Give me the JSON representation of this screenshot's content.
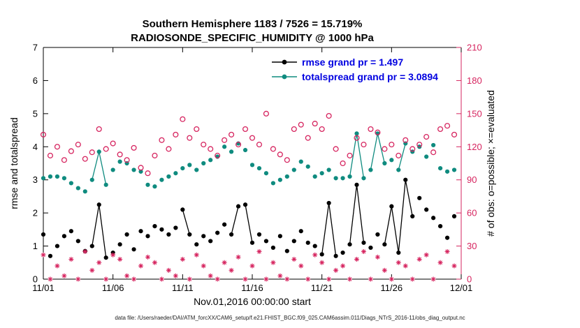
{
  "colors": {
    "rmse": "#000000",
    "totalspread": "#0f8b7f",
    "obs": "#d6245f",
    "legend_text": "#0000e0",
    "axis": "#000000"
  },
  "footer": {
    "datafile": "data file: /Users/raeder/DAI/ATM_forcXX/CAM6_setup/f.e21.FHIST_BGC.f09_025.CAM6assim.011/Diags_NTrS_2016-11/obs_diag_output.nc"
  },
  "chart_data": {
    "type": "scatter",
    "title": "Southern Hemisphere 1183 / 7526 = 15.719%",
    "subtitle": "RADIOSONDE_SPECIFIC_HUMIDITY @ 1000 hPa",
    "xlabel": "Nov.01,2016 00:00:00 start",
    "ylabel_left": "rmse and totalspread",
    "ylabel_right": "# of obs: o=possible; ×=evaluated",
    "xlim_days": [
      0,
      30
    ],
    "ylim_left": [
      0,
      7
    ],
    "ylim_right": [
      0,
      210
    ],
    "grid": false,
    "legend_position": "top-right-inside",
    "xticks": {
      "days": [
        0,
        5,
        10,
        15,
        20,
        25,
        30
      ],
      "labels": [
        "11/01",
        "11/06",
        "11/11",
        "11/16",
        "11/21",
        "11/26",
        "12/01"
      ]
    },
    "yticks_left": [
      0,
      1,
      2,
      3,
      4,
      5,
      6,
      7
    ],
    "yticks_right": [
      0,
      30,
      60,
      90,
      120,
      150,
      180,
      210
    ],
    "x_start_day": 0,
    "x_step_days": 0.5,
    "series": [
      {
        "name": "rmse grand pr = 1.497",
        "axis": "left",
        "marker": "filled-circle",
        "color": "#000000",
        "in_legend": true,
        "values": [
          1.35,
          0.7,
          1.0,
          1.3,
          1.45,
          1.15,
          0.85,
          1.0,
          2.25,
          0.65,
          0.8,
          1.05,
          1.35,
          0.9,
          1.45,
          1.3,
          1.6,
          1.5,
          1.35,
          1.55,
          2.1,
          1.35,
          1.05,
          1.3,
          1.15,
          1.4,
          1.65,
          1.35,
          2.2,
          2.25,
          1.1,
          1.35,
          1.15,
          0.95,
          1.3,
          0.85,
          1.15,
          1.45,
          1.1,
          1.0,
          0.75,
          2.3,
          0.7,
          0.8,
          1.05,
          2.85,
          1.1,
          0.95,
          1.35,
          1.05,
          2.2,
          0.8,
          3.0,
          1.9,
          2.45,
          2.1,
          1.85,
          1.6,
          1.25,
          1.9
        ]
      },
      {
        "name": "totalspread grand pr = 3.0894",
        "axis": "left",
        "marker": "filled-circle",
        "color": "#0f8b7f",
        "in_legend": true,
        "values": [
          3.05,
          3.1,
          3.1,
          3.05,
          2.9,
          2.75,
          2.65,
          3.0,
          3.85,
          2.85,
          3.3,
          3.55,
          3.5,
          3.3,
          3.25,
          2.85,
          2.8,
          3.0,
          3.1,
          3.2,
          3.35,
          3.45,
          3.3,
          3.5,
          3.6,
          3.7,
          4.0,
          3.85,
          4.1,
          3.9,
          3.45,
          3.35,
          3.2,
          2.9,
          3.0,
          3.1,
          3.3,
          3.55,
          3.4,
          3.1,
          3.2,
          3.3,
          3.05,
          3.05,
          3.1,
          4.4,
          3.05,
          3.3,
          4.4,
          3.5,
          3.6,
          3.3,
          4.1,
          3.85,
          4.0,
          3.7,
          4.05,
          3.35,
          3.25,
          3.3
        ]
      },
      {
        "name": "possible obs",
        "axis": "right",
        "marker": "open-circle",
        "color": "#d6245f",
        "in_legend": false,
        "values": [
          131,
          112,
          120,
          108,
          116,
          122,
          109,
          115,
          136,
          118,
          123,
          113,
          108,
          119,
          101,
          96,
          112,
          126,
          118,
          131,
          145,
          128,
          136,
          122,
          118,
          112,
          126,
          131,
          122,
          136,
          128,
          122,
          150,
          118,
          113,
          108,
          136,
          140,
          128,
          141,
          136,
          148,
          118,
          105,
          112,
          128,
          122,
          136,
          133,
          118,
          122,
          112,
          126,
          118,
          122,
          129,
          115,
          136,
          139,
          131
        ]
      },
      {
        "name": "evaluated obs",
        "axis": "right",
        "marker": "asterisk",
        "color": "#d6245f",
        "in_legend": false,
        "values": [
          22,
          0,
          12,
          3,
          18,
          0,
          25,
          8,
          15,
          0,
          22,
          18,
          3,
          0,
          12,
          20,
          15,
          0,
          8,
          3,
          18,
          0,
          22,
          12,
          3,
          0,
          15,
          8,
          20,
          0,
          12,
          25,
          0,
          15,
          3,
          0,
          18,
          12,
          0,
          22,
          15,
          0,
          8,
          12,
          0,
          18,
          25,
          0,
          20,
          8,
          0,
          15,
          12,
          0,
          18,
          22,
          0,
          15,
          25,
          12
        ]
      }
    ]
  }
}
